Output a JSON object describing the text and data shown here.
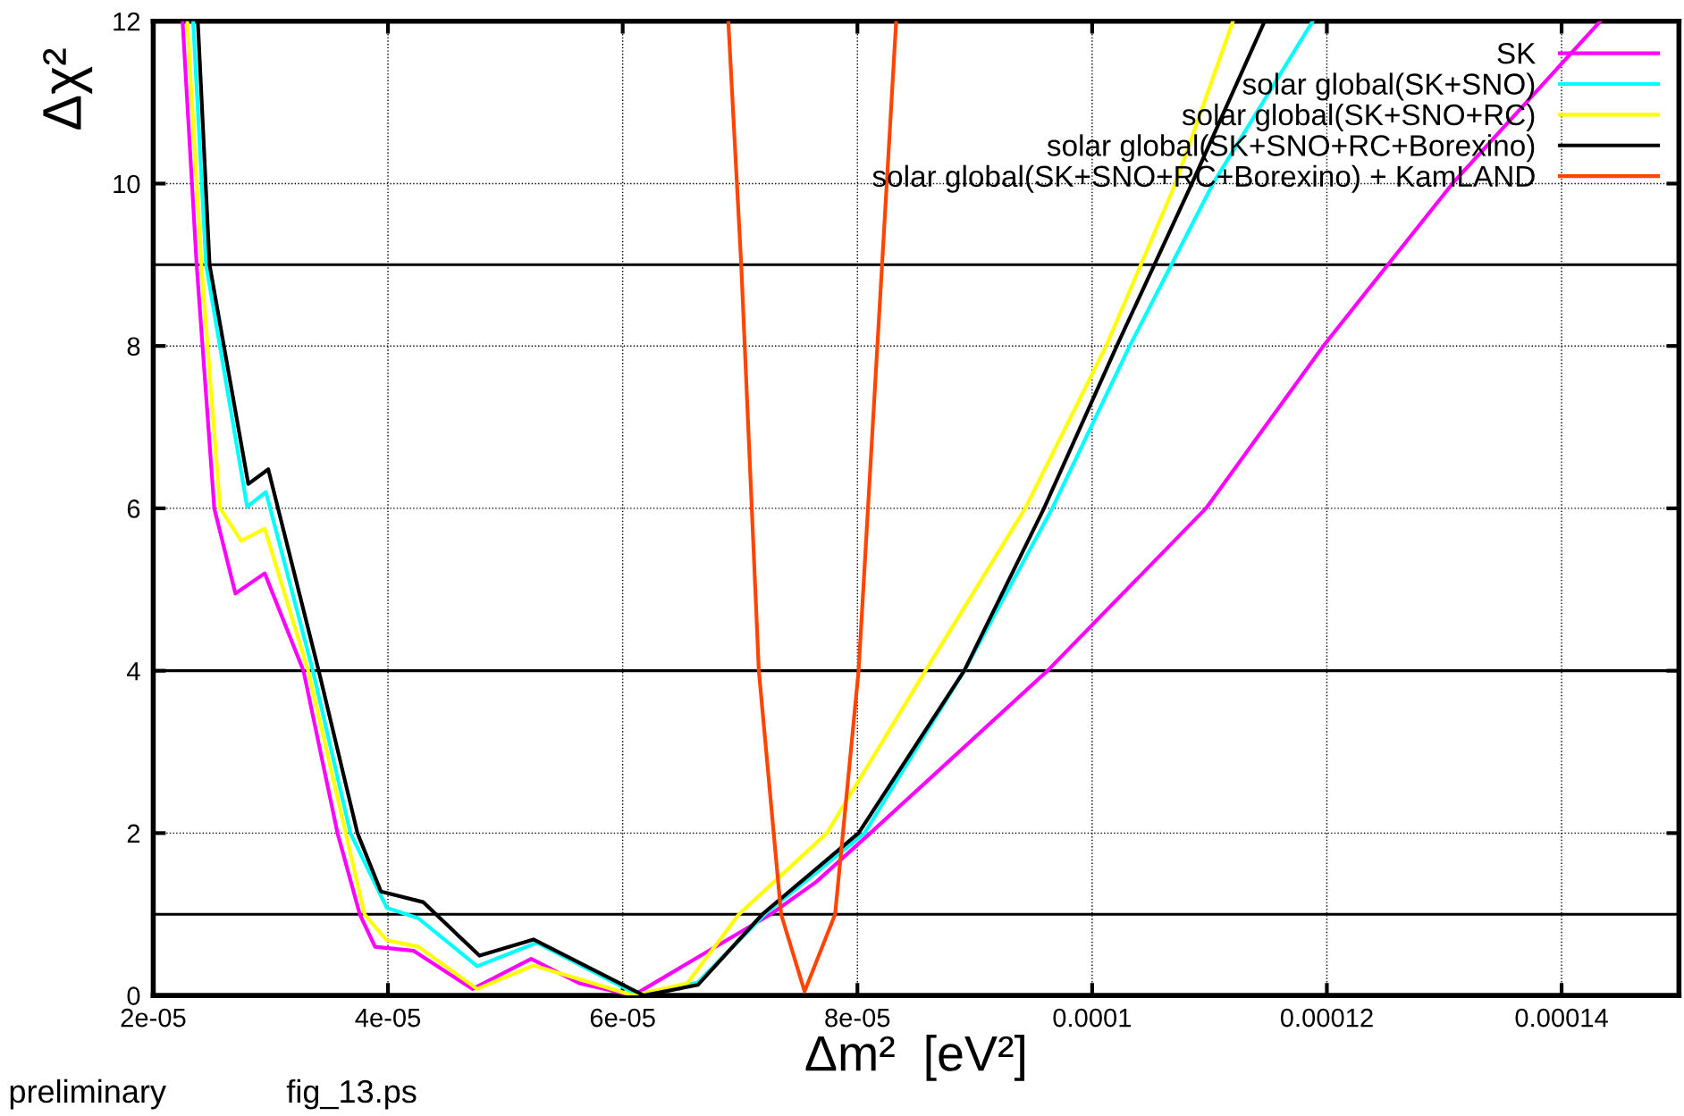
{
  "chart_data": {
    "type": "line",
    "xlabel": "Δm²  [eV²]",
    "ylabel": "Δχ²",
    "xlim": [
      2e-05,
      0.00015
    ],
    "ylim": [
      0,
      12
    ],
    "xticks": [
      {
        "value": 2e-05,
        "label": "2e-05"
      },
      {
        "value": 4e-05,
        "label": "4e-05"
      },
      {
        "value": 6e-05,
        "label": "6e-05"
      },
      {
        "value": 8e-05,
        "label": "8e-05"
      },
      0.0001,
      0.00012,
      0.00014
    ],
    "yticks": [
      0,
      2,
      4,
      6,
      8,
      10,
      12
    ],
    "grid": true,
    "legend": "top right",
    "line_style": "solid",
    "marker": "none",
    "series": [
      {
        "name": "SK",
        "color": "#ff00ff",
        "x": [
          2.25e-05,
          2.37e-05,
          2.52e-05,
          2.7e-05,
          2.95e-05,
          3.28e-05,
          3.57e-05,
          3.76e-05,
          3.89e-05,
          4.22e-05,
          4.72e-05,
          5.22e-05,
          5.63e-05,
          6.09e-05,
          7.26e-05,
          7.65e-05,
          8.11e-05,
          9.62e-05,
          0.0001097,
          0.0001197,
          0.0001307,
          0.0001433
        ],
        "values": [
          12,
          9,
          6,
          4.95,
          5.2,
          4,
          2,
          1,
          0.6,
          0.55,
          0.08,
          0.45,
          0.15,
          0,
          1,
          1.4,
          2,
          4,
          6,
          8,
          10,
          12
        ]
      },
      {
        "name": "solar global(SK+SNO)",
        "color": "#00ffff",
        "x": [
          2.34e-05,
          2.45e-05,
          2.8e-05,
          2.96e-05,
          3.36e-05,
          3.68e-05,
          3.99e-05,
          4.26e-05,
          4.76e-05,
          5.27e-05,
          6.14e-05,
          6.64e-05,
          7.21e-05,
          8.06e-05,
          8.91e-05,
          9.66e-05,
          0.0001032,
          0.0001103,
          0.0001188
        ],
        "values": [
          12,
          9,
          6.02,
          6.2,
          4,
          2,
          1.08,
          0.95,
          0.36,
          0.65,
          0,
          0.16,
          1,
          2,
          4,
          6,
          8,
          10,
          12
        ]
      },
      {
        "name": "solar global(SK+SNO+RC)",
        "color": "#ffff00",
        "x": [
          2.29e-05,
          2.41e-05,
          2.57e-05,
          2.75e-05,
          2.95e-05,
          3.32e-05,
          3.64e-05,
          3.8e-05,
          3.99e-05,
          4.26e-05,
          4.76e-05,
          5.24e-05,
          6.09e-05,
          6.55e-05,
          6.99e-05,
          7.74e-05,
          8.58e-05,
          9.43e-05,
          0.0001012,
          0.0001071,
          0.000112
        ],
        "values": [
          12,
          9,
          6,
          5.6,
          5.75,
          4,
          2,
          1,
          0.68,
          0.6,
          0.08,
          0.37,
          0,
          0.15,
          1,
          2,
          4,
          6,
          8,
          10,
          12
        ]
      },
      {
        "name": "solar global(SK+SNO+RC+Borexino)",
        "color": "#000000",
        "x": [
          2.38e-05,
          2.48e-05,
          2.81e-05,
          2.98e-05,
          3.41e-05,
          3.74e-05,
          3.94e-05,
          4.3e-05,
          4.78e-05,
          5.24e-05,
          6.18e-05,
          6.64e-05,
          7.19e-05,
          8.01e-05,
          8.91e-05,
          9.59e-05,
          0.0001021,
          0.0001085,
          0.0001147
        ],
        "values": [
          12,
          9,
          6.3,
          6.48,
          4,
          2,
          1.28,
          1.15,
          0.49,
          0.69,
          0,
          0.13,
          1,
          2,
          4,
          6,
          8,
          10,
          12
        ]
      },
      {
        "name": "solar global(SK+SNO+RC+Borexino) + KamLAND",
        "color": "#ff4500",
        "x": [
          6.9e-05,
          7.01e-05,
          7.16e-05,
          7.35e-05,
          7.55e-05,
          7.81e-05,
          8.01e-05,
          8.21e-05,
          8.33e-05
        ],
        "values": [
          12,
          9,
          4,
          1,
          0.05,
          1,
          4,
          9,
          12
        ]
      }
    ],
    "ref_lines": [
      {
        "axis": "y",
        "value": 1,
        "color": "#000000"
      },
      {
        "axis": "y",
        "value": 4,
        "color": "#000000"
      },
      {
        "axis": "y",
        "value": 9,
        "color": "#000000"
      }
    ],
    "annotations": [
      "preliminary",
      "fig_13.ps"
    ]
  }
}
